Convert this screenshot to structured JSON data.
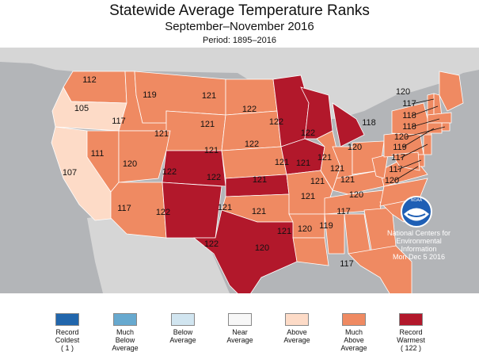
{
  "header": {
    "title": "Statewide Average Temperature Ranks",
    "subtitle": "September–November 2016",
    "period": "Period: 1895–2016"
  },
  "colors": {
    "ocean": "#b3b5b8",
    "land": "#d6d6d6",
    "record_coldest": "#2166ac",
    "much_below": "#67a9cf",
    "below": "#d1e5f0",
    "near": "#f7f7f7",
    "above": "#fddbc7",
    "much_above": "#ef8a62",
    "record_warmest": "#b2182b",
    "state_border": "#ffffff",
    "noaa_blue": "#1f5fb5"
  },
  "states": [
    {
      "id": "wa",
      "rank": "112",
      "category": "much_above"
    },
    {
      "id": "or",
      "rank": "105",
      "category": "above"
    },
    {
      "id": "ca",
      "rank": "107",
      "category": "above"
    },
    {
      "id": "id",
      "rank": "117",
      "category": "much_above"
    },
    {
      "id": "nv",
      "rank": "111",
      "category": "much_above"
    },
    {
      "id": "mt",
      "rank": "119",
      "category": "much_above"
    },
    {
      "id": "wy",
      "rank": "121",
      "category": "much_above"
    },
    {
      "id": "ut",
      "rank": "120",
      "category": "much_above"
    },
    {
      "id": "az",
      "rank": "117",
      "category": "much_above"
    },
    {
      "id": "co",
      "rank": "122",
      "category": "record_warmest"
    },
    {
      "id": "nm",
      "rank": "122",
      "category": "record_warmest"
    },
    {
      "id": "nd",
      "rank": "121",
      "category": "much_above"
    },
    {
      "id": "sd",
      "rank": "121",
      "category": "much_above"
    },
    {
      "id": "ne",
      "rank": "121",
      "category": "much_above"
    },
    {
      "id": "ks",
      "rank": "122",
      "category": "record_warmest"
    },
    {
      "id": "ok",
      "rank": "121",
      "category": "much_above"
    },
    {
      "id": "tx",
      "rank": "122",
      "category": "record_warmest"
    },
    {
      "id": "mn",
      "rank": "122",
      "category": "record_warmest"
    },
    {
      "id": "ia",
      "rank": "122",
      "category": "record_warmest"
    },
    {
      "id": "mo",
      "rank": "121",
      "category": "much_above"
    },
    {
      "id": "ar",
      "rank": "121",
      "category": "much_above"
    },
    {
      "id": "la",
      "rank": "120",
      "category": "much_above"
    },
    {
      "id": "wi",
      "rank": "122",
      "category": "record_warmest"
    },
    {
      "id": "il",
      "rank": "121",
      "category": "much_above"
    },
    {
      "id": "mi",
      "rank": "122",
      "category": "record_warmest"
    },
    {
      "id": "in",
      "rank": "121",
      "category": "much_above"
    },
    {
      "id": "oh",
      "rank": "121",
      "category": "much_above"
    },
    {
      "id": "ky",
      "rank": "121",
      "category": "much_above"
    },
    {
      "id": "tn",
      "rank": "121",
      "category": "much_above"
    },
    {
      "id": "ms",
      "rank": "121",
      "category": "much_above"
    },
    {
      "id": "al",
      "rank": "120",
      "category": "much_above"
    },
    {
      "id": "ga",
      "rank": "119",
      "category": "much_above"
    },
    {
      "id": "fl",
      "rank": "117",
      "category": "much_above"
    },
    {
      "id": "sc",
      "rank": "117",
      "category": "much_above"
    },
    {
      "id": "nc",
      "rank": "120",
      "category": "much_above"
    },
    {
      "id": "va",
      "rank": "121",
      "category": "much_above"
    },
    {
      "id": "wv",
      "rank": "121",
      "category": "much_above"
    },
    {
      "id": "pa",
      "rank": "120",
      "category": "much_above"
    },
    {
      "id": "ny",
      "rank": "118",
      "category": "much_above"
    },
    {
      "id": "me",
      "rank": "120",
      "category": "much_above"
    },
    {
      "id": "vt",
      "rank": "117",
      "category": "much_above"
    },
    {
      "id": "nh",
      "rank": "118",
      "category": "much_above"
    },
    {
      "id": "ma",
      "rank": "118",
      "category": "much_above"
    },
    {
      "id": "ri",
      "rank": "120",
      "category": "much_above"
    },
    {
      "id": "ct",
      "rank": "119",
      "category": "much_above"
    },
    {
      "id": "nj",
      "rank": "117",
      "category": "much_above"
    },
    {
      "id": "de",
      "rank": "117",
      "category": "much_above"
    },
    {
      "id": "md",
      "rank": "120",
      "category": "much_above"
    }
  ],
  "credit": {
    "logo_text": "NOAA",
    "line1": "National Centers for",
    "line2": "Environmental",
    "line3": "Information",
    "date": "Mon Dec  5 2016"
  },
  "legend": [
    {
      "key": "record_coldest",
      "line1": "Record",
      "line2": "Coldest",
      "line3": "( 1 )"
    },
    {
      "key": "much_below",
      "line1": "Much",
      "line2": "Below",
      "line3": "Average"
    },
    {
      "key": "below",
      "line1": "Below",
      "line2": "Average",
      "line3": ""
    },
    {
      "key": "near",
      "line1": "Near",
      "line2": "Average",
      "line3": ""
    },
    {
      "key": "above",
      "line1": "Above",
      "line2": "Average",
      "line3": ""
    },
    {
      "key": "much_above",
      "line1": "Much",
      "line2": "Above",
      "line3": "Average"
    },
    {
      "key": "record_warmest",
      "line1": "Record",
      "line2": "Warmest",
      "line3": "( 122 )"
    }
  ]
}
